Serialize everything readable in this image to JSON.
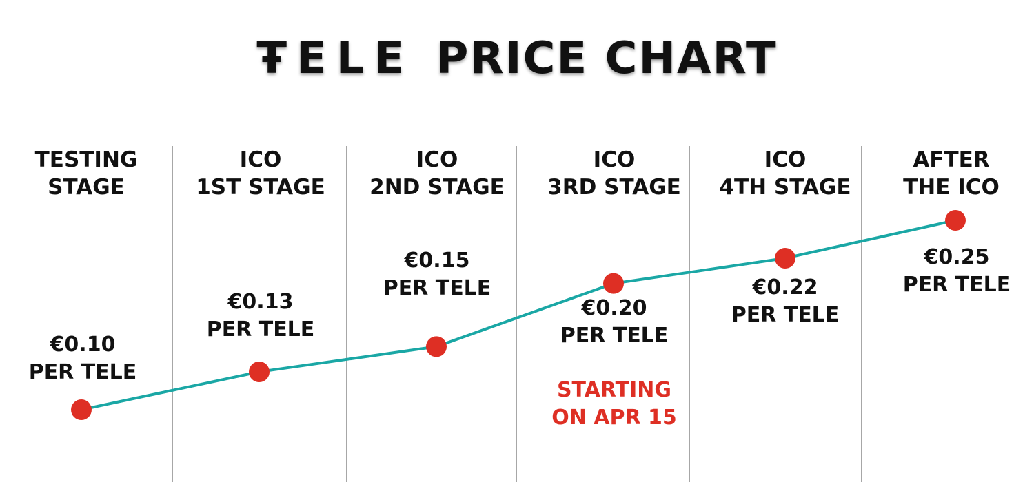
{
  "title": {
    "brand": "ŦELE",
    "rest": "PRICE CHART"
  },
  "colors": {
    "line": "#1aa7a5",
    "marker": "#de2f24",
    "text": "#111111",
    "note": "#de2f24",
    "divider": "#8a8a8a"
  },
  "chart_data": {
    "type": "line",
    "title": "ŦELE PRICE CHART",
    "xlabel": "",
    "ylabel": "",
    "categories": [
      [
        "TESTING",
        "STAGE"
      ],
      [
        "ICO",
        "1ST STAGE"
      ],
      [
        "ICO",
        "2ND STAGE"
      ],
      [
        "ICO",
        "3RD STAGE"
      ],
      [
        "ICO",
        "4TH STAGE"
      ],
      [
        "AFTER",
        "THE ICO"
      ]
    ],
    "series": [
      {
        "values": [
          0.1,
          0.13,
          0.15,
          0.2,
          0.22,
          0.25
        ]
      }
    ],
    "data_labels": [
      [
        "€0.10",
        "PER TELE"
      ],
      [
        "€0.13",
        "PER TELE"
      ],
      [
        "€0.15",
        "PER TELE"
      ],
      [
        "€0.20",
        "PER TELE"
      ],
      [
        "€0.22",
        "PER TELE"
      ],
      [
        "€0.25",
        "PER TELE"
      ]
    ],
    "annotation": {
      "stage_index": 3,
      "lines": [
        "STARTING",
        "ON APR 15"
      ]
    },
    "grid": false
  }
}
